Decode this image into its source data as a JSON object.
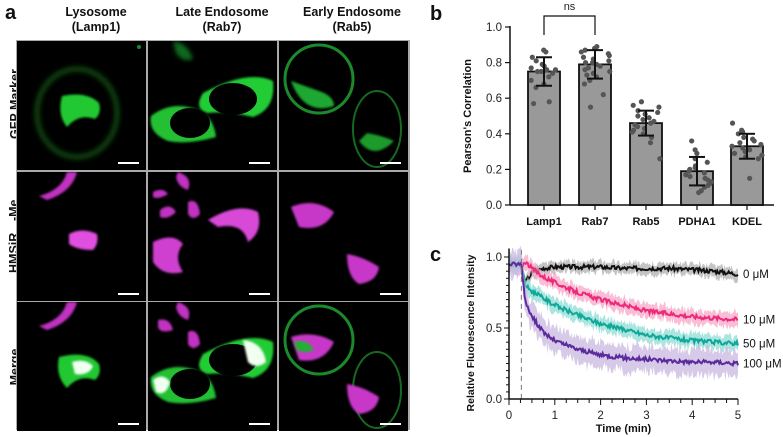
{
  "panel_a": {
    "letter": "a",
    "columns": [
      {
        "title": "Lysosome",
        "subtitle": "(Lamp1)"
      },
      {
        "title": "Late Endosome",
        "subtitle": "(Rab7)"
      },
      {
        "title": "Early Endosome",
        "subtitle": "(Rab5)"
      }
    ],
    "rows": [
      {
        "label": "GFP Marker",
        "channel": "green"
      },
      {
        "label": "HMSiR",
        "label_sub": "680",
        "label_suffix": "-Me",
        "channel": "magenta"
      },
      {
        "label": "Merge",
        "channel": "merge"
      }
    ],
    "colors": {
      "green": "#22d43a",
      "magenta": "#e040e0",
      "white": "#f4fff0"
    }
  },
  "panel_b": {
    "letter": "b",
    "significance": "ns"
  },
  "panel_c": {
    "letter": "c"
  },
  "chart_data": [
    {
      "type": "bar",
      "title": "",
      "xlabel": "",
      "ylabel": "Pearson's Correlation",
      "ylim": [
        0,
        1.0
      ],
      "yticks": [
        "0.0",
        "0.2",
        "0.4",
        "0.6",
        "0.8",
        "1.0"
      ],
      "categories": [
        "Lamp1",
        "Rab7",
        "Rab5",
        "PDHA1",
        "KDEL"
      ],
      "values": [
        0.75,
        0.79,
        0.46,
        0.19,
        0.33
      ],
      "error_sd": [
        0.08,
        0.08,
        0.07,
        0.08,
        0.07
      ],
      "bar_color": "#999999",
      "annotations": [
        {
          "text": "ns",
          "between": [
            "Lamp1",
            "Rab7"
          ]
        }
      ],
      "points": {
        "Lamp1": [
          0.87,
          0.86,
          0.83,
          0.81,
          0.79,
          0.78,
          0.77,
          0.76,
          0.76,
          0.75,
          0.75,
          0.74,
          0.72,
          0.7,
          0.68,
          0.66,
          0.58,
          0.57
        ],
        "Rab7": [
          0.89,
          0.88,
          0.87,
          0.86,
          0.85,
          0.84,
          0.83,
          0.82,
          0.81,
          0.8,
          0.8,
          0.79,
          0.78,
          0.77,
          0.76,
          0.75,
          0.74,
          0.73,
          0.72,
          0.7,
          0.68,
          0.62,
          0.55
        ],
        "Rab5": [
          0.58,
          0.56,
          0.55,
          0.53,
          0.52,
          0.51,
          0.5,
          0.49,
          0.48,
          0.47,
          0.46,
          0.45,
          0.44,
          0.43,
          0.42,
          0.41,
          0.4,
          0.38,
          0.35,
          0.26
        ],
        "PDHA1": [
          0.36,
          0.31,
          0.29,
          0.26,
          0.24,
          0.22,
          0.21,
          0.2,
          0.19,
          0.18,
          0.17,
          0.16,
          0.15,
          0.14,
          0.13,
          0.12,
          0.11,
          0.1,
          0.08,
          0.07
        ],
        "KDEL": [
          0.46,
          0.42,
          0.41,
          0.4,
          0.38,
          0.37,
          0.36,
          0.35,
          0.34,
          0.33,
          0.32,
          0.31,
          0.3,
          0.29,
          0.28,
          0.27,
          0.26,
          0.15
        ]
      }
    },
    {
      "type": "line",
      "title": "",
      "xlabel": "Time (min)",
      "ylabel": "Relative Fluorescence Intensity",
      "xlim": [
        0,
        5
      ],
      "ylim": [
        0,
        1.05
      ],
      "xticks": [
        "0",
        "1",
        "2",
        "3",
        "4",
        "5"
      ],
      "yticks": [
        "0.0",
        "0.5",
        "1.0"
      ],
      "vline_x": 0.27,
      "x": [
        0,
        0.27,
        0.35,
        0.5,
        0.75,
        1.0,
        1.5,
        2.0,
        2.5,
        3.0,
        3.5,
        4.0,
        4.5,
        5.0
      ],
      "series": [
        {
          "name": "0 μM",
          "color": "#111111",
          "band": "#b0b0b0",
          "values": [
            0.96,
            0.95,
            0.82,
            0.89,
            0.92,
            0.93,
            0.93,
            0.93,
            0.92,
            0.92,
            0.92,
            0.91,
            0.9,
            0.88
          ]
        },
        {
          "name": "10 μM",
          "color": "#ee2a7b",
          "band": "#f7a8c8",
          "values": [
            0.92,
            0.93,
            0.97,
            0.92,
            0.86,
            0.82,
            0.75,
            0.7,
            0.66,
            0.62,
            0.6,
            0.58,
            0.57,
            0.56
          ]
        },
        {
          "name": "50 μM",
          "color": "#10a89a",
          "band": "#8fdcd4",
          "values": [
            0.95,
            0.95,
            0.8,
            0.76,
            0.71,
            0.66,
            0.59,
            0.53,
            0.49,
            0.45,
            0.43,
            0.41,
            0.4,
            0.39
          ]
        },
        {
          "name": "100 μM",
          "color": "#5b2a9c",
          "band": "#c9b8e0",
          "values": [
            0.95,
            0.95,
            0.7,
            0.58,
            0.47,
            0.41,
            0.35,
            0.31,
            0.29,
            0.28,
            0.27,
            0.26,
            0.26,
            0.25
          ]
        }
      ]
    }
  ]
}
